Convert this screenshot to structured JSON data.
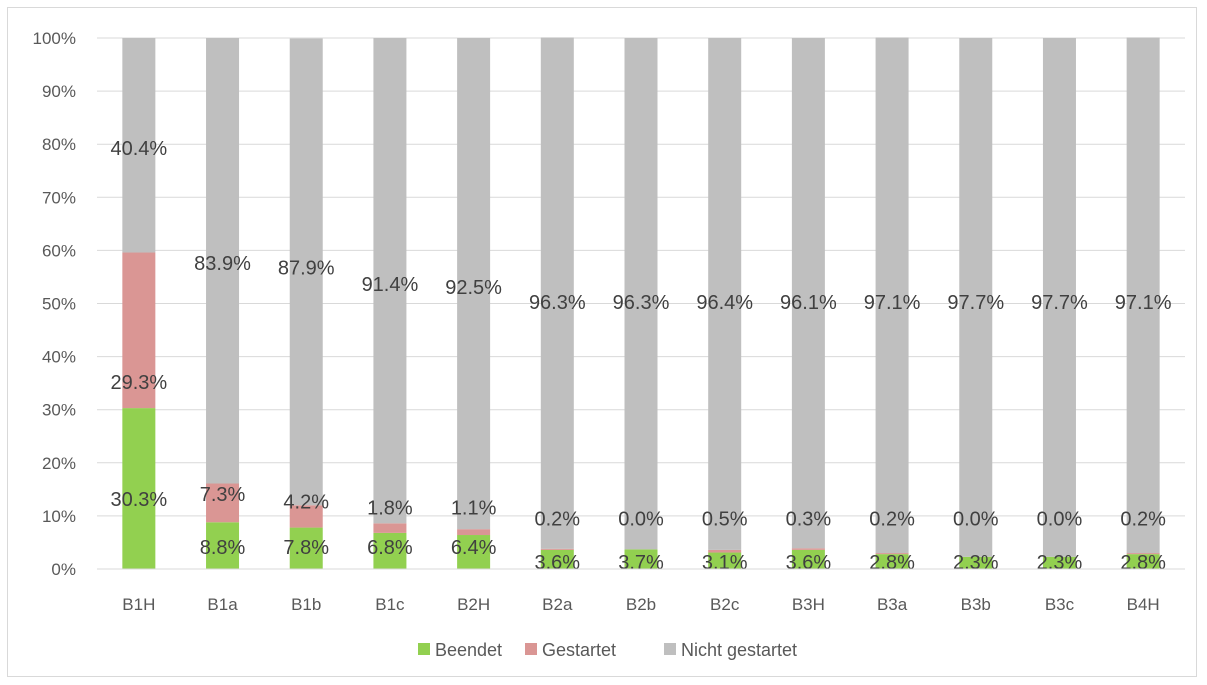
{
  "chart_data": {
    "type": "bar",
    "stacked": true,
    "percent_stacked": true,
    "categories": [
      "B1H",
      "B1a",
      "B1b",
      "B1c",
      "B2H",
      "B2a",
      "B2b",
      "B2c",
      "B3H",
      "B3a",
      "B3b",
      "B3c",
      "B4H"
    ],
    "series": [
      {
        "name": "Beendet",
        "color": "#92d050",
        "values": [
          30.3,
          8.8,
          7.8,
          6.8,
          6.4,
          3.6,
          3.7,
          3.1,
          3.6,
          2.8,
          2.3,
          2.3,
          2.8
        ],
        "labels": [
          "30.3%",
          "8.8%",
          "7.8%",
          "6.8%",
          "6.4%",
          "3.6%",
          "3.7%",
          "3.1%",
          "3.6%",
          "2.8%",
          "2.3%",
          "2.3%",
          "2.8%"
        ]
      },
      {
        "name": "Gestartet",
        "color": "#da9694",
        "values": [
          29.3,
          7.3,
          4.2,
          1.8,
          1.1,
          0.2,
          0.0,
          0.5,
          0.3,
          0.2,
          0.0,
          0.0,
          0.2
        ],
        "labels": [
          "29.3%",
          "7.3%",
          "4.2%",
          "1.8%",
          "1.1%",
          "0.2%",
          "0.0%",
          "0.5%",
          "0.3%",
          "0.2%",
          "0.0%",
          "0.0%",
          "0.2%"
        ]
      },
      {
        "name": "Nicht gestartet",
        "color": "#bfbfbf",
        "values": [
          40.4,
          83.9,
          87.9,
          91.4,
          92.5,
          96.3,
          96.3,
          96.4,
          96.1,
          97.1,
          97.7,
          97.7,
          97.1
        ],
        "labels": [
          "40.4%",
          "83.9%",
          "87.9%",
          "91.4%",
          "92.5%",
          "96.3%",
          "96.3%",
          "96.4%",
          "96.1%",
          "97.1%",
          "97.7%",
          "97.7%",
          "97.1%"
        ]
      }
    ],
    "y_ticks": [
      "0%",
      "10%",
      "20%",
      "30%",
      "40%",
      "50%",
      "60%",
      "70%",
      "80%",
      "90%",
      "100%"
    ],
    "ylim": [
      0,
      100
    ],
    "grid": true,
    "legend_position": "bottom",
    "title": "",
    "xlabel": "",
    "ylabel": ""
  }
}
